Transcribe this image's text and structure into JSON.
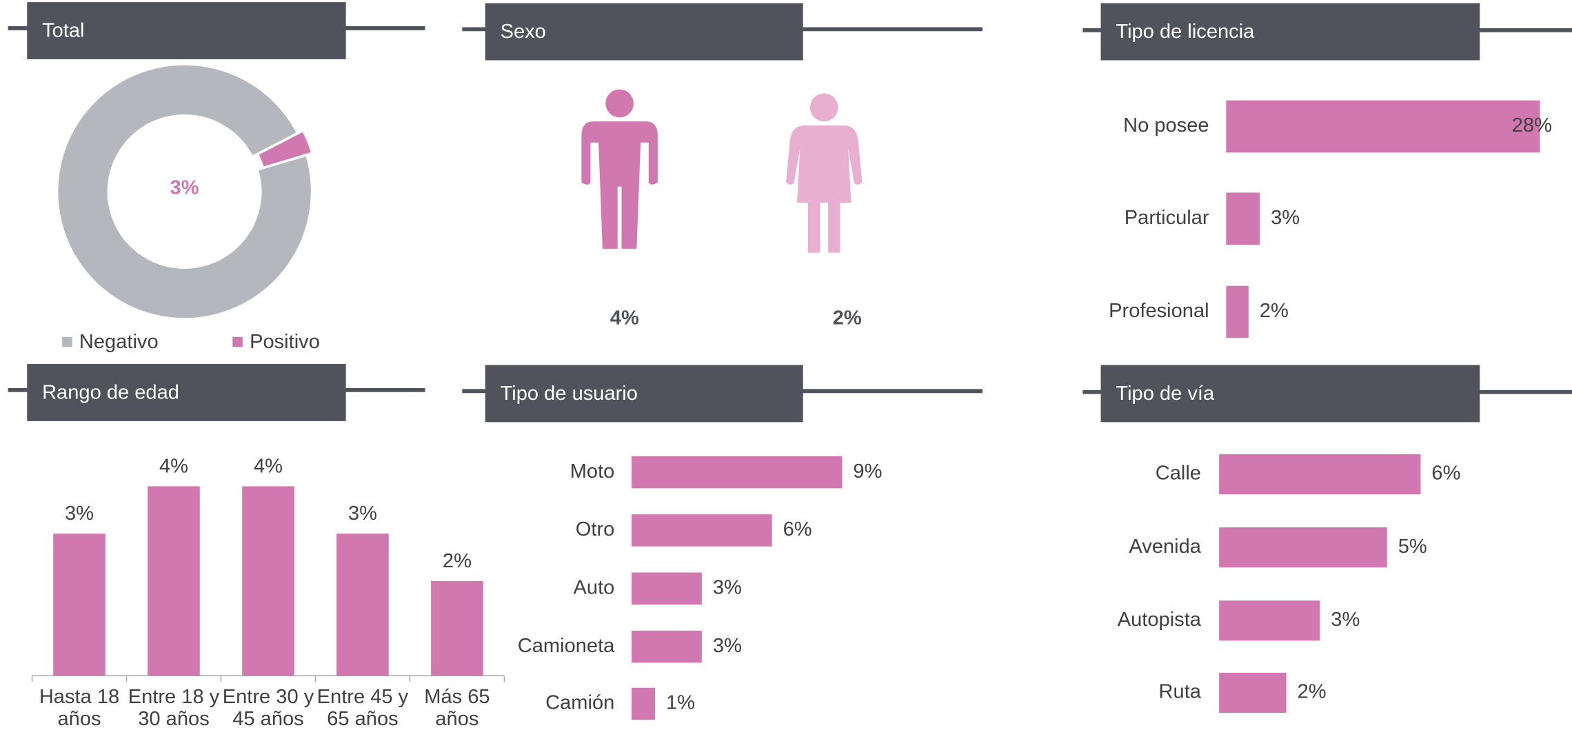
{
  "chart_data": [
    {
      "type": "donut",
      "title": "Total",
      "categories": [
        "Negativo",
        "Positivo"
      ],
      "values": [
        97,
        3
      ],
      "value_labels": [
        null,
        "3%"
      ],
      "colors": [
        "#b4b7bd",
        "#d278b0"
      ],
      "legend": "bottom"
    },
    {
      "type": "pictogram",
      "title": "Sexo",
      "values": [
        4,
        2
      ],
      "value_labels": [
        "4%",
        "2%"
      ],
      "colors": [
        "#d278b0",
        "#e8afd0"
      ]
    },
    {
      "type": "hbar",
      "title": "Tipo de licencia",
      "categories": [
        "No posee",
        "Particular",
        "Profesional"
      ],
      "values": [
        28,
        3,
        2
      ],
      "value_labels": [
        "28%",
        "3%",
        "2%"
      ],
      "color": "#d278b0"
    },
    {
      "type": "bar",
      "title": "Rango de edad",
      "categories": [
        "Hasta 18 años",
        "Entre 18 y 30 años",
        "Entre 30 y 45 años",
        "Entre 45 y 65 años",
        "Más 65 años"
      ],
      "values": [
        3,
        4,
        4,
        3,
        2
      ],
      "value_labels": [
        "3%",
        "4%",
        "4%",
        "3%",
        "2%"
      ],
      "color": "#d278b0"
    },
    {
      "type": "hbar",
      "title": "Tipo de usuario",
      "categories": [
        "Moto",
        "Otro",
        "Auto",
        "Camioneta",
        "Camión"
      ],
      "values": [
        9,
        6,
        3,
        3,
        1
      ],
      "value_labels": [
        "9%",
        "6%",
        "3%",
        "3%",
        "1%"
      ],
      "color": "#d278b0"
    },
    {
      "type": "hbar",
      "title": "Tipo de vía",
      "categories": [
        "Calle",
        "Avenida",
        "Autopista",
        "Ruta"
      ],
      "values": [
        6,
        5,
        3,
        2
      ],
      "value_labels": [
        "6%",
        "5%",
        "3%",
        "2%"
      ],
      "color": "#d278b0"
    }
  ]
}
